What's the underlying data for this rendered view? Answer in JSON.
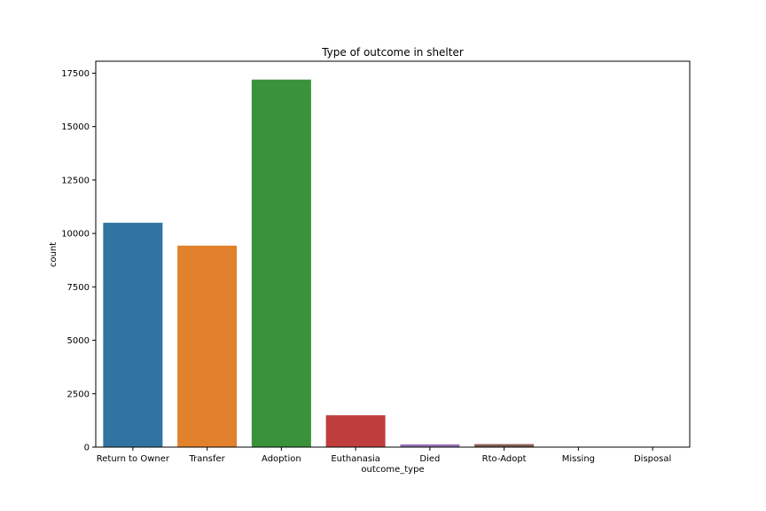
{
  "chart_data": {
    "type": "bar",
    "title": "Type of outcome in shelter",
    "xlabel": "outcome_type",
    "ylabel": "count",
    "categories": [
      "Return to Owner",
      "Transfer",
      "Adoption",
      "Euthanasia",
      "Died",
      "Rto-Adopt",
      "Missing",
      "Disposal"
    ],
    "values": [
      10500,
      9430,
      17200,
      1490,
      130,
      140,
      20,
      15
    ],
    "colors": [
      "#3274a1",
      "#e1812c",
      "#3a923a",
      "#c03d3e",
      "#9372b2",
      "#845b53",
      "#d684bd",
      "#7f7f7f"
    ],
    "ylim": [
      0,
      18060
    ],
    "yticks": [
      0,
      2500,
      5000,
      7500,
      10000,
      12500,
      15000,
      17500
    ],
    "ytick_labels": [
      "0",
      "2500",
      "5000",
      "7500",
      "10000",
      "12500",
      "15000",
      "17500"
    ],
    "grid": false,
    "legend": "none"
  }
}
